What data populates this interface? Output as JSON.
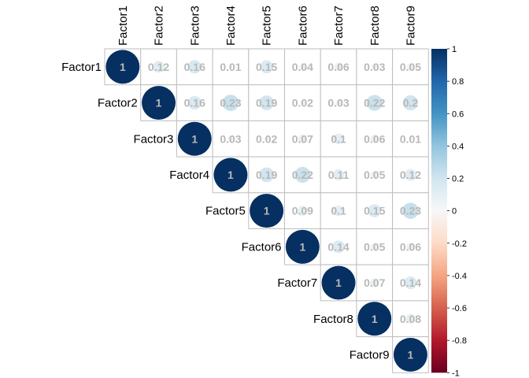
{
  "chart_data": {
    "type": "heatmap",
    "method": "circle",
    "layout": "upper-triangle",
    "labels": [
      "Factor1",
      "Factor2",
      "Factor3",
      "Factor4",
      "Factor5",
      "Factor6",
      "Factor7",
      "Factor8",
      "Factor9"
    ],
    "matrix": [
      [
        1,
        0.12,
        0.16,
        0.01,
        0.15,
        0.04,
        0.06,
        0.03,
        0.05
      ],
      [
        0.12,
        1,
        0.16,
        0.23,
        0.19,
        0.02,
        0.03,
        0.22,
        0.2
      ],
      [
        0.16,
        0.16,
        1,
        0.03,
        0.02,
        0.07,
        0.1,
        0.06,
        0.01
      ],
      [
        0.01,
        0.23,
        0.03,
        1,
        0.19,
        0.22,
        0.11,
        0.05,
        0.12
      ],
      [
        0.15,
        0.19,
        0.02,
        0.19,
        1,
        0.09,
        0.1,
        0.15,
        0.23
      ],
      [
        0.04,
        0.02,
        0.07,
        0.22,
        0.09,
        1,
        0.14,
        0.05,
        0.06
      ],
      [
        0.06,
        0.03,
        0.1,
        0.11,
        0.1,
        0.14,
        1,
        0.07,
        0.14
      ],
      [
        0.03,
        0.22,
        0.06,
        0.05,
        0.15,
        0.05,
        0.07,
        1,
        0.08
      ],
      [
        0.05,
        0.2,
        0.01,
        0.12,
        0.23,
        0.06,
        0.14,
        0.08,
        1
      ]
    ],
    "colorbar": {
      "range": [
        -1,
        1
      ],
      "ticks": [
        1,
        0.8,
        0.6,
        0.4,
        0.2,
        0,
        -0.2,
        -0.4,
        -0.6,
        -0.8,
        -1
      ],
      "colors": {
        "negative_end": "#67001f",
        "mid": "#f7f7f7",
        "positive_end": "#053061"
      }
    },
    "title": "",
    "xlabel": "",
    "ylabel": ""
  }
}
